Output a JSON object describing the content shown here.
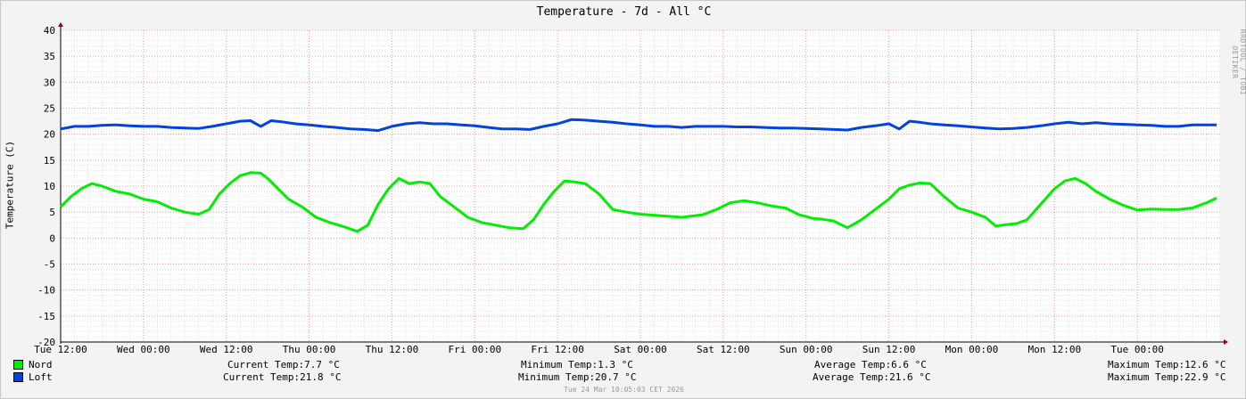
{
  "chart_data": {
    "type": "line",
    "title": "Temperature - 7d - All °C",
    "ylabel": "Temperature (C)",
    "ylim": [
      -20,
      40
    ],
    "yticks": [
      40,
      35,
      30,
      25,
      20,
      15,
      10,
      5,
      0,
      -5,
      -10,
      -15,
      -20
    ],
    "xlim": [
      0,
      168
    ],
    "xticks": [
      {
        "t": 0,
        "label": "Tue 12:00"
      },
      {
        "t": 12,
        "label": "Wed 00:00"
      },
      {
        "t": 24,
        "label": "Wed 12:00"
      },
      {
        "t": 36,
        "label": "Thu 00:00"
      },
      {
        "t": 48,
        "label": "Thu 12:00"
      },
      {
        "t": 60,
        "label": "Fri 00:00"
      },
      {
        "t": 72,
        "label": "Fri 12:00"
      },
      {
        "t": 84,
        "label": "Sat 00:00"
      },
      {
        "t": 96,
        "label": "Sat 12:00"
      },
      {
        "t": 108,
        "label": "Sun 00:00"
      },
      {
        "t": 120,
        "label": "Sun 12:00"
      },
      {
        "t": 132,
        "label": "Mon 00:00"
      },
      {
        "t": 144,
        "label": "Mon 12:00"
      },
      {
        "t": 156,
        "label": "Tue 00:00"
      }
    ],
    "grid": true,
    "series": [
      {
        "name": "Nord",
        "color": "#00ee00",
        "x": [
          0,
          1.5,
          3,
          4.5,
          6,
          8,
          10,
          12,
          14,
          16,
          18,
          20,
          21.5,
          23,
          24.5,
          26,
          27.5,
          29,
          30,
          31.5,
          33,
          35,
          37,
          39,
          41,
          43,
          44.5,
          46,
          47.5,
          49,
          50.5,
          52,
          53.5,
          55,
          57,
          59,
          61,
          63,
          65,
          67,
          68.5,
          70,
          71.5,
          73,
          74.5,
          76,
          78,
          80,
          82,
          84,
          87,
          90,
          93,
          95,
          97,
          99,
          101,
          103,
          105,
          107,
          109,
          110.5,
          112,
          114,
          116,
          118,
          120,
          121.5,
          123,
          124.5,
          126,
          128,
          130,
          132,
          134,
          135.5,
          137,
          138.5,
          140,
          142,
          144,
          145.5,
          147,
          148.5,
          150,
          152,
          154,
          156,
          158,
          160,
          162,
          164,
          166,
          167.5
        ],
        "values": [
          6.0,
          8.0,
          9.5,
          10.5,
          10.0,
          9.0,
          8.5,
          7.5,
          7.0,
          5.8,
          5.0,
          4.6,
          5.5,
          8.5,
          10.5,
          12.0,
          12.6,
          12.5,
          11.5,
          9.5,
          7.5,
          6.0,
          4.0,
          3.0,
          2.2,
          1.3,
          2.5,
          6.5,
          9.5,
          11.5,
          10.5,
          10.8,
          10.5,
          8.0,
          6.0,
          4.0,
          3.0,
          2.5,
          2.0,
          1.8,
          3.5,
          6.5,
          9.0,
          11.0,
          10.8,
          10.5,
          8.5,
          5.5,
          5.0,
          4.6,
          4.3,
          4.0,
          4.5,
          5.5,
          6.8,
          7.2,
          6.8,
          6.2,
          5.8,
          4.5,
          3.8,
          3.6,
          3.3,
          2.0,
          3.5,
          5.5,
          7.5,
          9.5,
          10.2,
          10.6,
          10.5,
          8.0,
          5.8,
          5.0,
          4.0,
          2.3,
          2.6,
          2.8,
          3.5,
          6.5,
          9.5,
          11.0,
          11.5,
          10.5,
          9.0,
          7.5,
          6.3,
          5.4,
          5.6,
          5.5,
          5.5,
          5.8,
          6.8,
          7.7
        ]
      },
      {
        "name": "Loft",
        "color": "#0044dd",
        "x": [
          0,
          2,
          4,
          6,
          8,
          10,
          12,
          14,
          16,
          18,
          20,
          22,
          24,
          26,
          27.5,
          29,
          30.5,
          32,
          34,
          36,
          38,
          40,
          42,
          44,
          46,
          48,
          50,
          52,
          54,
          56,
          58,
          60,
          62,
          64,
          66,
          68,
          70,
          72,
          74,
          76,
          78,
          80,
          82,
          84,
          86,
          88,
          90,
          92,
          94,
          96,
          98,
          100,
          102,
          104,
          106,
          108,
          110,
          112,
          114,
          116,
          118,
          120,
          121.5,
          123,
          124.5,
          126,
          128,
          130,
          132,
          134,
          136,
          138,
          140,
          142,
          144,
          146,
          148,
          150,
          152,
          154,
          156,
          158,
          160,
          162,
          164,
          166,
          167.5
        ],
        "values": [
          21.0,
          21.5,
          21.5,
          21.7,
          21.8,
          21.6,
          21.5,
          21.5,
          21.3,
          21.2,
          21.1,
          21.5,
          22.0,
          22.5,
          22.6,
          21.5,
          22.6,
          22.4,
          22.0,
          21.8,
          21.5,
          21.3,
          21.0,
          20.9,
          20.7,
          21.5,
          22.0,
          22.2,
          22.0,
          22.0,
          21.8,
          21.6,
          21.3,
          21.0,
          21.0,
          20.9,
          21.5,
          22.0,
          22.8,
          22.7,
          22.5,
          22.3,
          22.0,
          21.8,
          21.5,
          21.5,
          21.3,
          21.5,
          21.5,
          21.5,
          21.4,
          21.4,
          21.3,
          21.2,
          21.2,
          21.1,
          21.0,
          20.9,
          20.8,
          21.3,
          21.6,
          22.0,
          21.0,
          22.5,
          22.3,
          22.0,
          21.8,
          21.6,
          21.4,
          21.2,
          21.0,
          21.1,
          21.3,
          21.6,
          22.0,
          22.3,
          22.0,
          22.2,
          22.0,
          21.9,
          21.8,
          21.7,
          21.5,
          21.5,
          21.8,
          21.8,
          21.8
        ]
      }
    ]
  },
  "legend": [
    {
      "name": "Nord",
      "color": "#00ee00",
      "current": "Current Temp:7.7 °C",
      "minimum": "Minimum Temp:1.3 °C",
      "average": "Average Temp:6.6 °C",
      "maximum": "Maximum Temp:12.6 °C"
    },
    {
      "name": "Loft",
      "color": "#0044dd",
      "current": "Current Temp:21.8 °C",
      "minimum": "Minimum Temp:20.7 °C",
      "average": "Average Temp:21.6 °C",
      "maximum": "Maximum Temp:22.9 °C"
    }
  ],
  "watermark": "RRDTOOL / TOBI OETIKER",
  "footer": "Tue 24 Mar 10:05:03 CET 2026"
}
